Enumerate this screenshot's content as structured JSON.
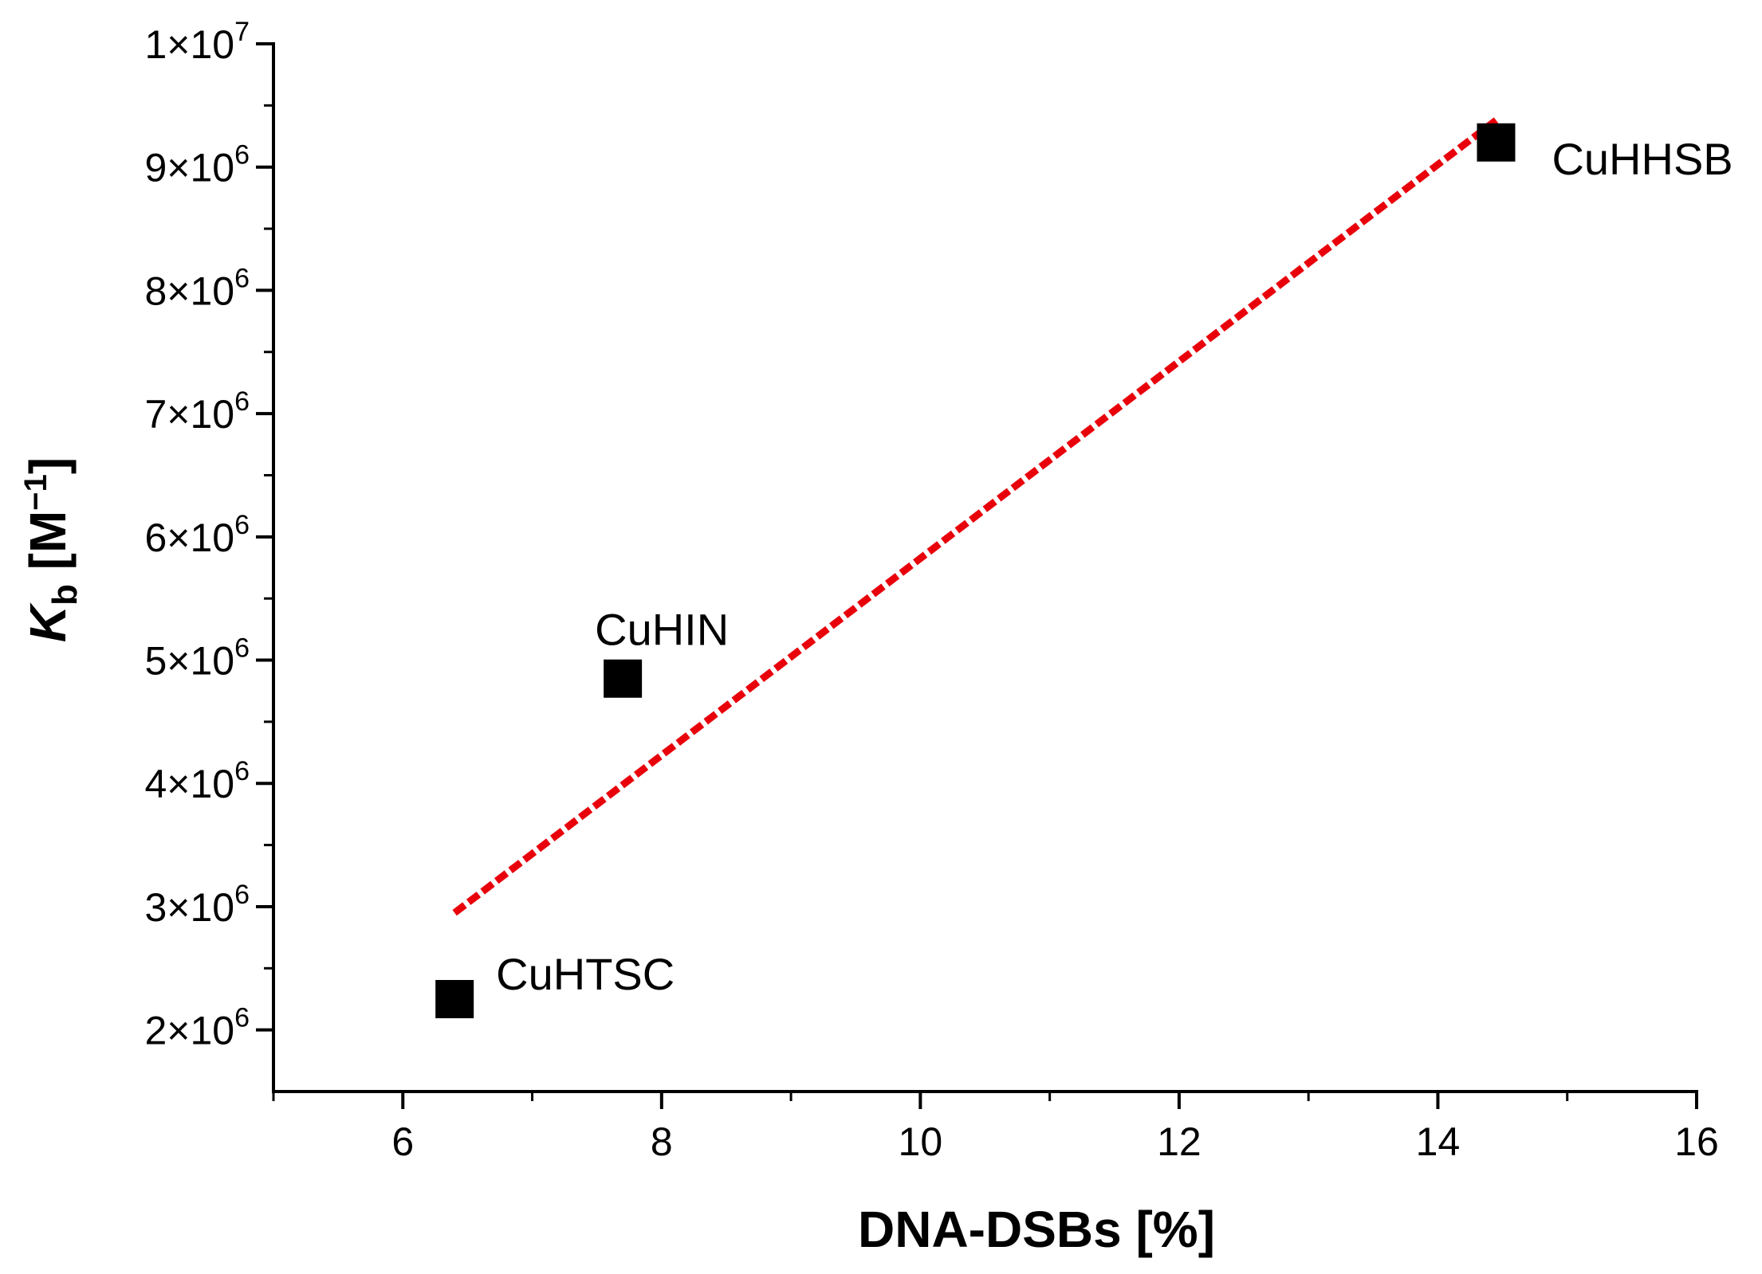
{
  "chart_data": {
    "type": "scatter",
    "title": "",
    "xlabel": "DNA-DSBs [%]",
    "ylabel": {
      "symbol": "K",
      "subscript": "b",
      "unit": " [M",
      "exponent": "−1",
      "close": "]"
    },
    "xlim": [
      5,
      16
    ],
    "ylim": [
      1500000,
      10000000
    ],
    "x_ticks": [
      6,
      8,
      10,
      12,
      14,
      16
    ],
    "x_minor_ticks": [
      5,
      7,
      9,
      11,
      13,
      15
    ],
    "y_ticks": [
      {
        "value": 2000000,
        "mantissa": "2",
        "exp": "6"
      },
      {
        "value": 3000000,
        "mantissa": "3",
        "exp": "6"
      },
      {
        "value": 4000000,
        "mantissa": "4",
        "exp": "6"
      },
      {
        "value": 5000000,
        "mantissa": "5",
        "exp": "6"
      },
      {
        "value": 6000000,
        "mantissa": "6",
        "exp": "6"
      },
      {
        "value": 7000000,
        "mantissa": "7",
        "exp": "6"
      },
      {
        "value": 8000000,
        "mantissa": "8",
        "exp": "6"
      },
      {
        "value": 9000000,
        "mantissa": "9",
        "exp": "6"
      },
      {
        "value": 10000000,
        "mantissa": "1",
        "exp": "7"
      }
    ],
    "y_minor_ticks": [
      2500000,
      3500000,
      4500000,
      5500000,
      6500000,
      7500000,
      8500000,
      9500000
    ],
    "points": [
      {
        "label": "CuHTSC",
        "x": 6.4,
        "y": 2250000
      },
      {
        "label": "CuHIN",
        "x": 7.7,
        "y": 4850000
      },
      {
        "label": "CuHHSB",
        "x": 14.45,
        "y": 9200000
      }
    ],
    "fit_line": {
      "x1": 6.4,
      "y1": 2950000,
      "x2": 14.45,
      "y2": 9380000
    },
    "colors": {
      "points": "#000000",
      "fit": "#e8000b",
      "axes": "#000000"
    },
    "grid": false,
    "legend": "none"
  }
}
